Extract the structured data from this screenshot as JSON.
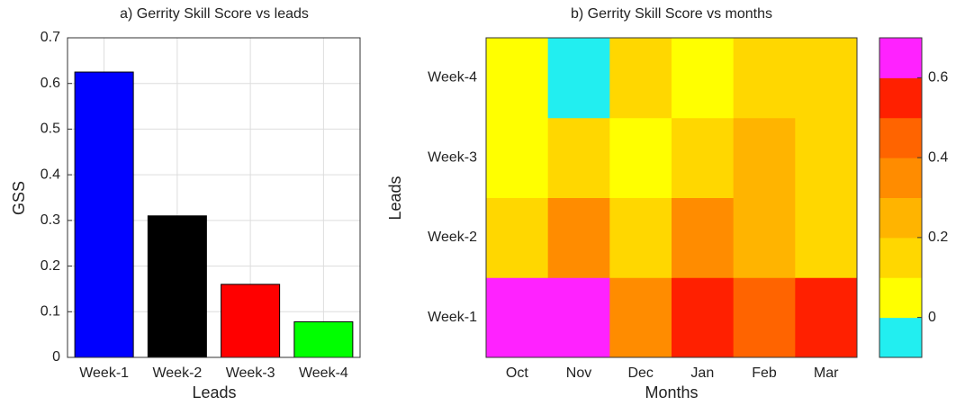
{
  "chart_data": [
    {
      "type": "bar",
      "title": "a) Gerrity Skill Score vs leads",
      "xlabel": "Leads",
      "ylabel": "GSS",
      "categories": [
        "Week-1",
        "Week-2",
        "Week-3",
        "Week-4"
      ],
      "values": [
        0.625,
        0.31,
        0.16,
        0.078
      ],
      "colors": [
        "#0000ff",
        "#000000",
        "#ff0000",
        "#00ff00"
      ],
      "ylim": [
        0,
        0.7
      ],
      "yticks": [
        0,
        0.1,
        0.2,
        0.3,
        0.4,
        0.5,
        0.6,
        0.7
      ],
      "grid": true
    },
    {
      "type": "heatmap",
      "title": "b) Gerrity Skill Score vs months",
      "xlabel": "Months",
      "ylabel": "Leads",
      "x": [
        "Oct",
        "Nov",
        "Dec",
        "Jan",
        "Feb",
        "Mar"
      ],
      "y": [
        "Week-1",
        "Week-2",
        "Week-3",
        "Week-4"
      ],
      "z": [
        [
          0.65,
          0.65,
          0.35,
          0.55,
          0.45,
          0.55
        ],
        [
          0.15,
          0.35,
          0.15,
          0.35,
          0.25,
          0.15
        ],
        [
          0.05,
          0.15,
          0.05,
          0.15,
          0.25,
          0.15
        ],
        [
          0.05,
          -0.05,
          0.15,
          0.05,
          0.15,
          0.15
        ]
      ],
      "colorbar": {
        "colors": [
          "#22eef0",
          "#ffff00",
          "#ffd700",
          "#ffb400",
          "#ff8c00",
          "#ff6400",
          "#ff2000",
          "#ff22ff"
        ],
        "lim": [
          -0.1,
          0.7
        ],
        "ticks": [
          0,
          0.2,
          0.4,
          0.6
        ]
      }
    }
  ]
}
